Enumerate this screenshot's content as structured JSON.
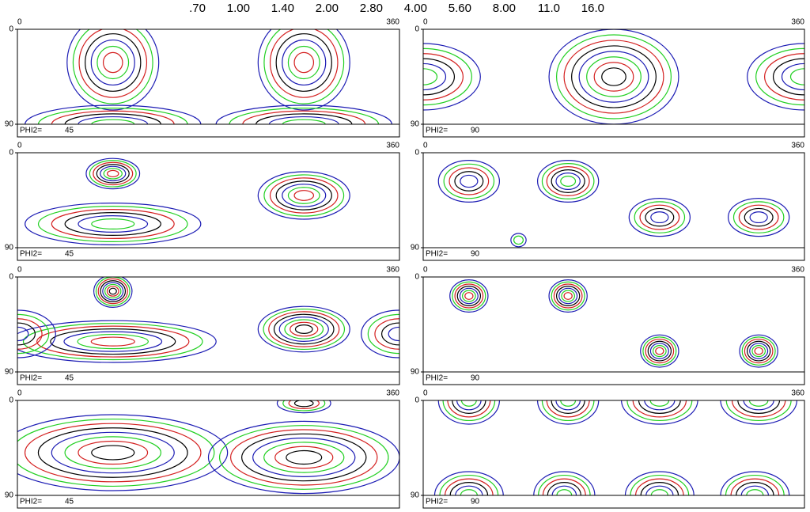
{
  "chart_data": {
    "type": "contour",
    "levels": [
      {
        "value": 0.7,
        "label": ".70"
      },
      {
        "value": 1,
        "label": "1.00"
      },
      {
        "value": 1.4,
        "label": "1.40"
      },
      {
        "value": 2,
        "label": "2.00"
      },
      {
        "value": 2.8,
        "label": "2.80"
      },
      {
        "value": 4,
        "label": "4.00"
      },
      {
        "value": 5.6,
        "label": "5.60"
      },
      {
        "value": 8,
        "label": "8.00"
      },
      {
        "value": 11,
        "label": "11.0"
      },
      {
        "value": 16,
        "label": "16.0"
      }
    ],
    "level_colors": [
      "#1c1cb4",
      "#22d022",
      "#d42020",
      "#000000",
      "#1c1cb4",
      "#22d022",
      "#d42020",
      "#000000",
      "#1c1cb4",
      "#22d022"
    ],
    "xlim": [
      0,
      360
    ],
    "xticks": [
      0,
      360
    ],
    "ylim": [
      0,
      90
    ],
    "yticks": [
      0,
      90
    ],
    "phi2_label": "PHI2=",
    "panels": [
      {
        "phi2": 45
      },
      {
        "phi2": 90
      },
      {
        "phi2": 45
      },
      {
        "phi2": 90
      },
      {
        "phi2": 45
      },
      {
        "phi2": 90
      },
      {
        "phi2": 45
      },
      {
        "phi2": 90
      }
    ]
  }
}
